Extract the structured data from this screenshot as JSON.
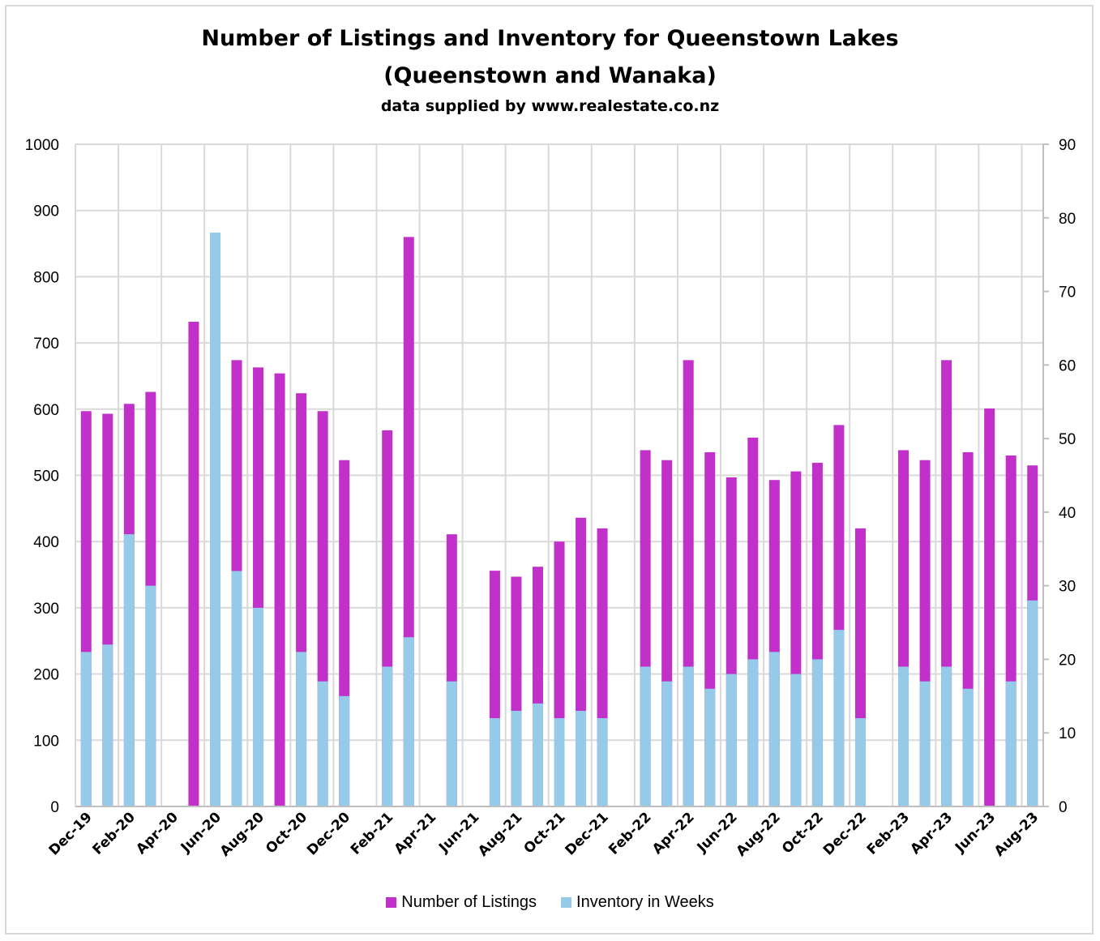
{
  "chart_data": {
    "type": "bar",
    "title": "Number of Listings and Inventory for Queenstown Lakes",
    "title_line2": "(Queenstown and Wanaka)",
    "subtitle": "data supplied by www.realestate.co.nz",
    "x_tick_labels": [
      "Dec-19",
      "Feb-20",
      "Apr-20",
      "Jun-20",
      "Aug-20",
      "Oct-20",
      "Dec-20",
      "Feb-21",
      "Apr-21",
      "Jun-21",
      "Aug-21",
      "Oct-21",
      "Dec-21",
      "Feb-22",
      "Apr-22",
      "Jun-22",
      "Aug-22",
      "Oct-22",
      "Dec-22",
      "Feb-23",
      "Apr-23",
      "Jun-23",
      "Aug-23"
    ],
    "y_left": {
      "min": 0,
      "max": 1000,
      "step": 100
    },
    "y_right": {
      "min": 0,
      "max": 90,
      "step": 10
    },
    "grid": true,
    "legend_position": "bottom",
    "series": [
      {
        "name": "Number of Listings",
        "axis": "left",
        "color": "#c130c9",
        "values": [
          597,
          593,
          608,
          626,
          null,
          732,
          null,
          674,
          663,
          654,
          624,
          597,
          523,
          null,
          568,
          860,
          null,
          411,
          null,
          356,
          347,
          362,
          400,
          436,
          420,
          null,
          538,
          523,
          674,
          535,
          497,
          557,
          493,
          506,
          519,
          576,
          420,
          null,
          538,
          523,
          674,
          535,
          601,
          530,
          515
        ]
      },
      {
        "name": "Inventory in Weeks",
        "axis": "right",
        "color": "#95cbe9",
        "values": [
          21,
          22,
          37,
          30,
          null,
          0,
          78,
          32,
          27,
          0,
          21,
          17,
          15,
          null,
          19,
          23,
          null,
          17,
          null,
          12,
          13,
          14,
          12,
          13,
          12,
          null,
          19,
          17,
          19,
          16,
          18,
          20,
          21,
          18,
          20,
          24,
          12,
          null,
          19,
          17,
          19,
          16,
          0,
          17,
          28
        ]
      }
    ]
  }
}
